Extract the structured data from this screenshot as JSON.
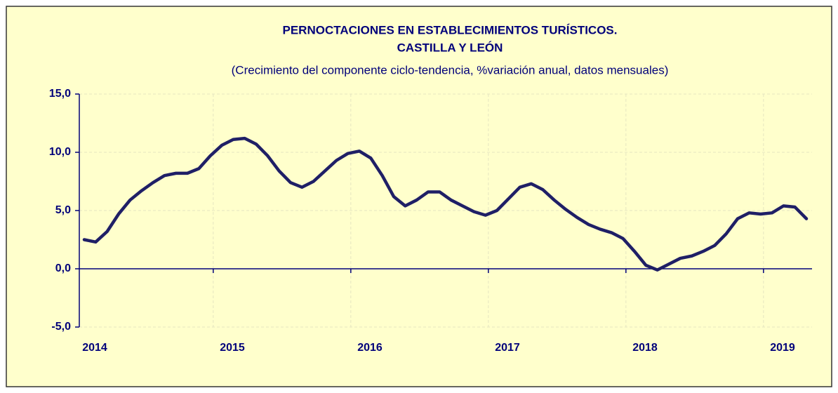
{
  "chart_data": {
    "type": "line",
    "title": [
      "PERNOCTACIONES  EN ESTABLECIMIENTOS  TURÍSTICOS.",
      "CASTILLA  Y  LEÓN"
    ],
    "subtitle": "(Crecimiento del componente ciclo-tendencia, %variación anual, datos mensuales)",
    "categories": [
      "2014",
      null,
      null,
      null,
      null,
      null,
      null,
      null,
      null,
      null,
      null,
      null,
      "2015",
      null,
      null,
      null,
      null,
      null,
      null,
      null,
      null,
      null,
      null,
      null,
      "2016",
      null,
      null,
      null,
      null,
      null,
      null,
      null,
      null,
      null,
      null,
      null,
      "2017",
      null,
      null,
      null,
      null,
      null,
      null,
      null,
      null,
      null,
      null,
      null,
      "2018",
      null,
      null,
      null,
      null,
      null,
      null,
      null,
      null,
      null,
      null,
      null,
      "2019",
      null,
      null,
      null
    ],
    "series": [
      {
        "name": "Pernoctaciones",
        "color": "#1f1f66",
        "values": [
          2.5,
          2.3,
          3.2,
          4.7,
          5.9,
          6.7,
          7.4,
          8.0,
          8.2,
          8.2,
          8.6,
          9.7,
          10.6,
          11.1,
          11.2,
          10.7,
          9.7,
          8.4,
          7.4,
          7.0,
          7.5,
          8.4,
          9.3,
          9.9,
          10.1,
          9.5,
          8.0,
          6.2,
          5.4,
          5.9,
          6.6,
          6.6,
          5.9,
          5.4,
          4.9,
          4.6,
          5.0,
          6.0,
          7.0,
          7.3,
          6.8,
          5.9,
          5.1,
          4.4,
          3.8,
          3.4,
          3.1,
          2.6,
          1.5,
          0.3,
          -0.1,
          0.4,
          0.9,
          1.1,
          1.5,
          2.0,
          3.0,
          4.3,
          4.8,
          4.7,
          4.8,
          5.4,
          5.3,
          4.3
        ]
      }
    ],
    "ylim": [
      -5,
      15
    ],
    "yticks": [
      {
        "value": -5,
        "label": "-5,0"
      },
      {
        "value": 0,
        "label": "0,0"
      },
      {
        "value": 5,
        "label": "5,0"
      },
      {
        "value": 10,
        "label": "10,0"
      },
      {
        "value": 15,
        "label": "15,0"
      }
    ],
    "grid": true
  }
}
